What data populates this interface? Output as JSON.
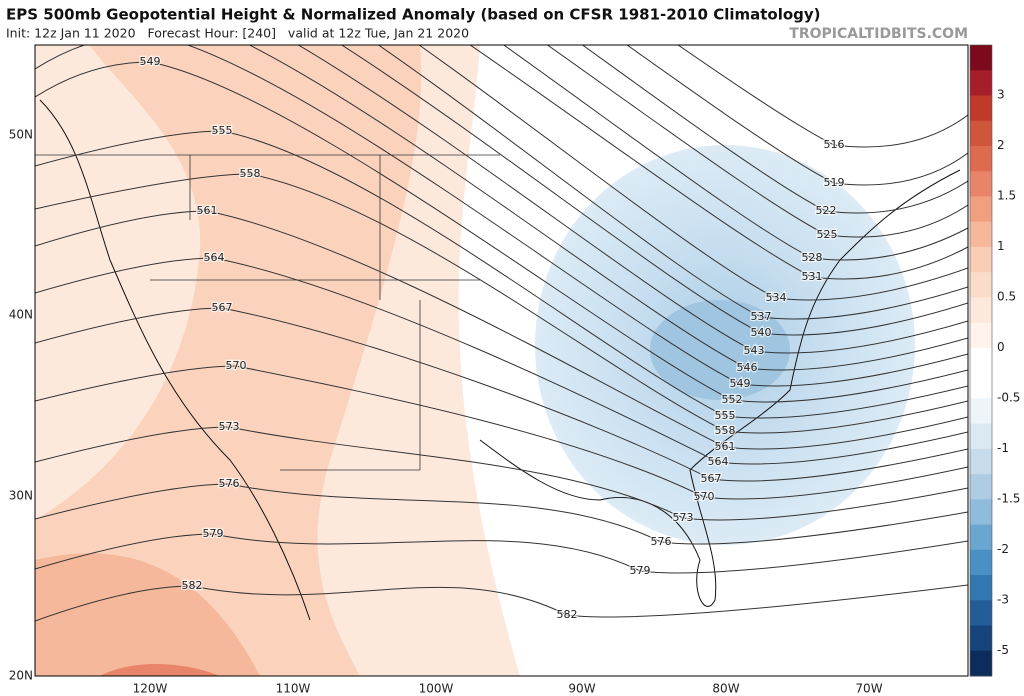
{
  "header": {
    "title": "EPS 500mb Geopotential Height & Normalized Anomaly (based on CFSR 1981-2010 Climatology)",
    "subtitle": "Init: 12z Jan 11 2020   Forecast Hour: [240]   valid at 12z Tue, Jan 21 2020",
    "site": "TROPICALTIDBITS.COM"
  },
  "map": {
    "lat_labels": [
      "50N",
      "40N",
      "30N",
      "20N"
    ],
    "lon_labels": [
      "120W",
      "110W",
      "100W",
      "90W",
      "80W",
      "70W"
    ],
    "contour_labels": [
      "549",
      "555",
      "558",
      "561",
      "564",
      "567",
      "570",
      "573",
      "576",
      "579",
      "582",
      "516",
      "519",
      "522",
      "525",
      "528",
      "531",
      "534",
      "537",
      "540",
      "543",
      "546",
      "549",
      "552",
      "555",
      "558",
      "561",
      "564",
      "567",
      "570",
      "573",
      "576",
      "579",
      "582"
    ],
    "colorbar_labels": [
      "3",
      "2",
      "1.5",
      "1",
      "0.5",
      "0",
      "-0.5",
      "-1",
      "-1.5",
      "-2",
      "-3",
      "-5"
    ]
  }
}
